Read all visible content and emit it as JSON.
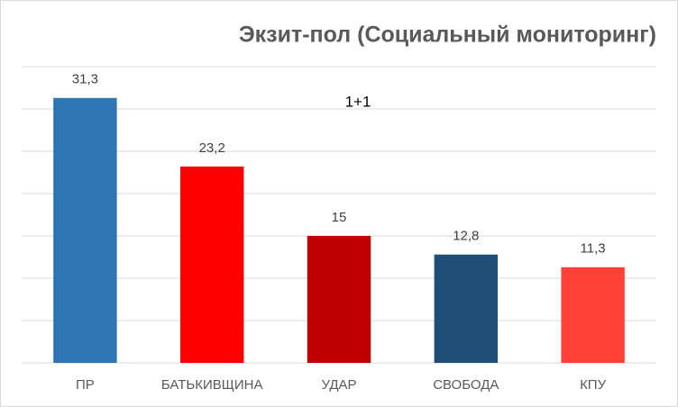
{
  "chart_data": {
    "type": "bar",
    "title": "Экзит-пол (Социальный мониторинг)",
    "annotation": "1+1",
    "categories": [
      "ПР",
      "БАТЬКИВЩИНА",
      "УДАР",
      "СВОБОДА",
      "КПУ"
    ],
    "values": [
      31.3,
      23.2,
      15,
      12.8,
      11.3
    ],
    "value_labels": [
      "31,3",
      "23,2",
      "15",
      "12,8",
      "11,3"
    ],
    "colors": [
      "#2e75b6",
      "#ff0000",
      "#c00000",
      "#1f4e79",
      "#ff4136"
    ],
    "ylim": [
      0,
      35
    ],
    "yticks": [
      0,
      5,
      10,
      15,
      20,
      25,
      30,
      35
    ],
    "grid": true
  }
}
